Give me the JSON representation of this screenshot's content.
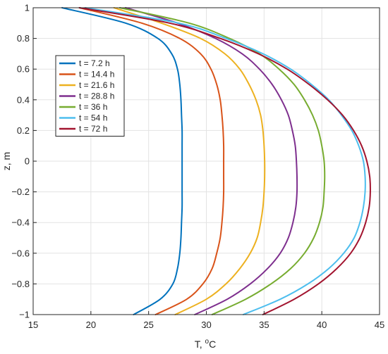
{
  "chart_data": {
    "type": "line",
    "xlabel": "T, ",
    "xlabel_unit_sup": "o",
    "xlabel_unit": "C",
    "ylabel": "z, m",
    "xlim": [
      15,
      45
    ],
    "ylim": [
      -1,
      1
    ],
    "x_ticks": [
      "15",
      "20",
      "25",
      "30",
      "35",
      "40",
      "45"
    ],
    "y_ticks": [
      "-1",
      "-0.8",
      "-0.6",
      "-0.4",
      "-0.2",
      "0",
      "0.2",
      "0.4",
      "0.6",
      "0.8",
      "1"
    ],
    "grid": true,
    "legend_position": "upper-left",
    "z": [
      -1.0,
      -0.9,
      -0.8,
      -0.7,
      -0.6,
      -0.5,
      -0.4,
      -0.3,
      -0.2,
      -0.1,
      0.0,
      0.1,
      0.2,
      0.3,
      0.4,
      0.5,
      0.6,
      0.7,
      0.8,
      0.9,
      1.0
    ],
    "series": [
      {
        "name": "t = 7.2 h",
        "color": "#0072BD",
        "T": [
          23.7,
          26.0,
          27.1,
          27.5,
          27.7,
          27.8,
          27.85,
          27.9,
          27.9,
          27.9,
          27.9,
          27.9,
          27.9,
          27.85,
          27.8,
          27.7,
          27.5,
          27.0,
          25.8,
          23.0,
          17.5
        ]
      },
      {
        "name": "t = 14.4 h",
        "color": "#D95319",
        "T": [
          25.6,
          28.3,
          29.7,
          30.5,
          30.9,
          31.2,
          31.35,
          31.45,
          31.5,
          31.5,
          31.5,
          31.5,
          31.45,
          31.35,
          31.2,
          30.9,
          30.4,
          29.5,
          27.7,
          24.4,
          19.0
        ]
      },
      {
        "name": "t = 21.6 h",
        "color": "#EDB120",
        "T": [
          27.3,
          30.0,
          31.7,
          32.9,
          33.8,
          34.4,
          34.7,
          34.9,
          35.0,
          35.05,
          35.05,
          35.0,
          34.9,
          34.7,
          34.3,
          33.7,
          32.9,
          31.6,
          29.5,
          26.1,
          22.0
        ]
      },
      {
        "name": "t = 28.8 h",
        "color": "#7E2F8E",
        "T": [
          29.0,
          31.8,
          33.8,
          35.3,
          36.4,
          37.1,
          37.5,
          37.75,
          37.85,
          37.85,
          37.8,
          37.7,
          37.45,
          37.1,
          36.5,
          35.7,
          34.6,
          33.1,
          30.8,
          27.5,
          23.0
        ]
      },
      {
        "name": "t = 36 h",
        "color": "#77AC30",
        "T": [
          30.5,
          33.4,
          35.6,
          37.3,
          38.5,
          39.3,
          39.8,
          40.1,
          40.2,
          40.25,
          40.2,
          40.0,
          39.7,
          39.2,
          38.5,
          37.6,
          36.3,
          34.6,
          32.0,
          28.5,
          22.5
        ]
      },
      {
        "name": "t = 54 h",
        "color": "#4DBEEE",
        "T": [
          33.2,
          36.4,
          38.8,
          40.6,
          41.9,
          42.8,
          43.3,
          43.6,
          43.75,
          43.75,
          43.6,
          43.2,
          42.6,
          41.7,
          40.6,
          39.1,
          37.3,
          34.9,
          31.7,
          27.6,
          19.5
        ]
      },
      {
        "name": "t = 72 h",
        "color": "#A2142F",
        "T": [
          34.9,
          37.6,
          39.7,
          41.3,
          42.5,
          43.3,
          43.8,
          44.1,
          44.2,
          44.15,
          43.9,
          43.45,
          42.75,
          41.8,
          40.5,
          38.9,
          37.0,
          34.5,
          31.2,
          26.8,
          19.0
        ]
      }
    ]
  }
}
